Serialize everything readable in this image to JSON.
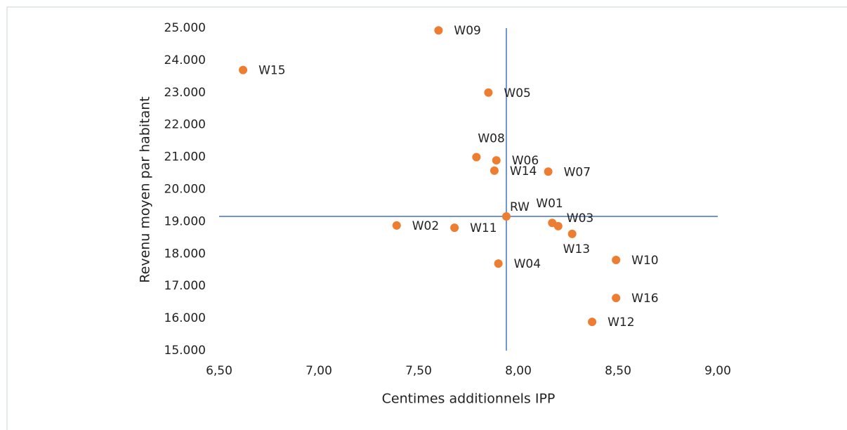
{
  "chart_data": {
    "type": "scatter",
    "x_label": "Centimes additionnels IPP",
    "y_label": "Revenu moyen par habitant",
    "labels": [
      "W15",
      "W09",
      "W05",
      "W08",
      "W06",
      "W14",
      "W07",
      "RW",
      "W01",
      "W03",
      "W13",
      "W02",
      "W11",
      "W04",
      "W10",
      "W16",
      "W12"
    ],
    "x": [
      6.62,
      7.6,
      7.85,
      7.79,
      7.89,
      7.88,
      8.15,
      7.94,
      8.17,
      8.2,
      8.27,
      7.39,
      7.68,
      7.9,
      8.49,
      8.49,
      8.37
    ],
    "values": [
      23700,
      24930,
      23000,
      21000,
      20900,
      20580,
      20550,
      19160,
      18960,
      18860,
      18620,
      18880,
      18810,
      17700,
      17810,
      16630,
      15890
    ],
    "color": "#ed7d31",
    "crosshair": {
      "x": 7.94,
      "y": 19160,
      "color": "#4472c4"
    },
    "xlim": [
      6.5,
      9.0
    ],
    "xticks": [
      {
        "value": 6.5,
        "label": "6,50"
      },
      {
        "value": 7.0,
        "label": "7,00"
      },
      {
        "value": 7.5,
        "label": "7,50"
      },
      {
        "value": 8.0,
        "label": "8,00"
      },
      {
        "value": 8.5,
        "label": "8,50"
      },
      {
        "value": 9.0,
        "label": "9,00"
      }
    ],
    "ylim": [
      15000,
      25000
    ],
    "yticks": [
      {
        "value": 15000,
        "label": "15.000"
      },
      {
        "value": 16000,
        "label": "16.000"
      },
      {
        "value": 17000,
        "label": "17.000"
      },
      {
        "value": 18000,
        "label": "18.000"
      },
      {
        "value": 19000,
        "label": "19.000"
      },
      {
        "value": 20000,
        "label": "20.000"
      },
      {
        "value": 21000,
        "label": "21.000"
      },
      {
        "value": 22000,
        "label": "22.000"
      },
      {
        "value": 23000,
        "label": "23.000"
      },
      {
        "value": 24000,
        "label": "24.000"
      },
      {
        "value": 25000,
        "label": "25.000"
      }
    ]
  }
}
